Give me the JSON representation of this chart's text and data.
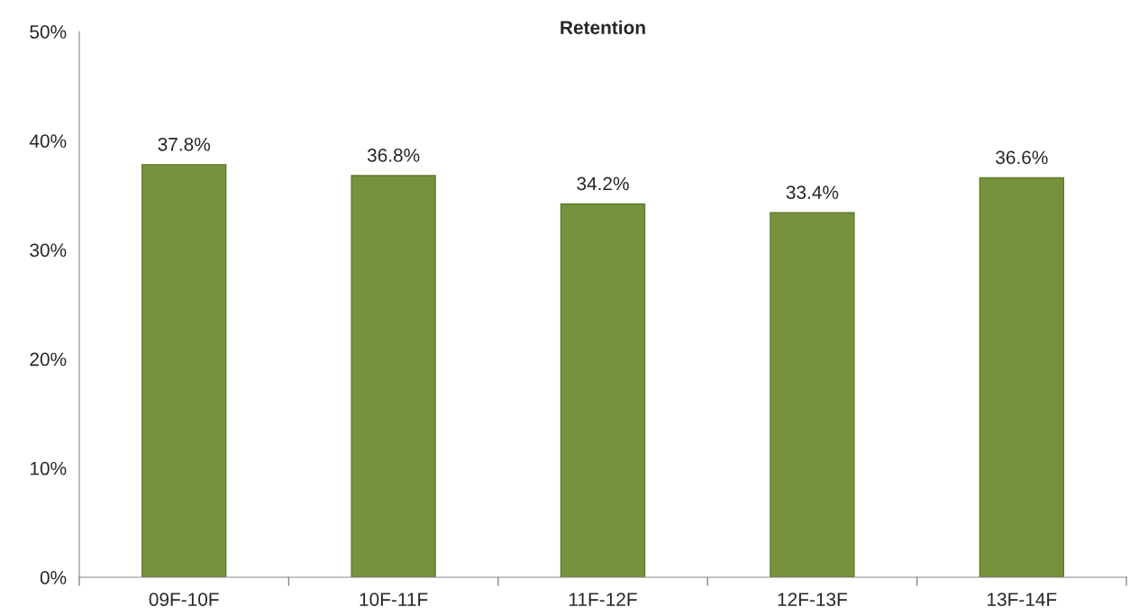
{
  "chart_data": {
    "type": "bar",
    "title": "Retention",
    "categories": [
      "09F-10F",
      "10F-11F",
      "11F-12F",
      "12F-13F",
      "13F-14F"
    ],
    "values": [
      37.8,
      36.8,
      34.2,
      33.4,
      36.6
    ],
    "value_labels": [
      "37.8%",
      "36.8%",
      "34.2%",
      "33.4%",
      "36.6%"
    ],
    "color": "#76923c",
    "ylim": [
      0,
      50
    ],
    "yticks": [
      {
        "value": 0,
        "label": "0%"
      },
      {
        "value": 10,
        "label": "10%"
      },
      {
        "value": 20,
        "label": "20%"
      },
      {
        "value": 30,
        "label": "30%"
      },
      {
        "value": 40,
        "label": "40%"
      },
      {
        "value": 50,
        "label": "50%"
      }
    ],
    "grid": false,
    "legend": false
  }
}
